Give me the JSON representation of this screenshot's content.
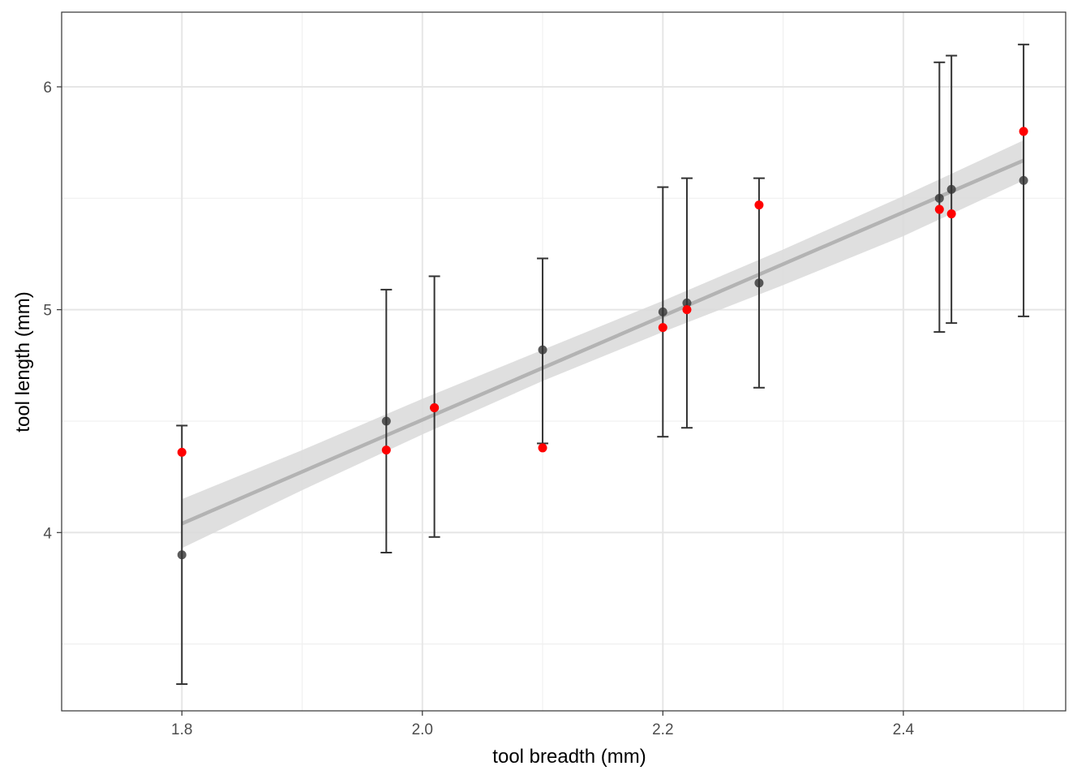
{
  "chart_data": {
    "type": "scatter",
    "title": "",
    "xlabel": "tool breadth (mm)",
    "ylabel": "tool length (mm)",
    "xlim": [
      1.7,
      2.535
    ],
    "ylim": [
      3.2,
      6.335
    ],
    "x_ticks": [
      1.8,
      2.0,
      2.2,
      2.4
    ],
    "x_tick_labels": [
      "1.8",
      "2.0",
      "2.2",
      "2.4"
    ],
    "x_minor_ticks": [
      1.9,
      2.1,
      2.3,
      2.5
    ],
    "y_ticks": [
      4,
      5,
      6
    ],
    "y_tick_labels": [
      "4",
      "5",
      "6"
    ],
    "y_minor_ticks": [
      3.5,
      4.5,
      5.5
    ],
    "grid": true,
    "legend": "none",
    "colors": {
      "observed": "#ff0000",
      "predicted": "#333333",
      "error_bar": "#333333",
      "trend_line": "#b3b3b3",
      "confidence_band": "#d9d9d9",
      "grid_major": "#e6e6e6",
      "grid_minor": "#f0f0f0",
      "panel_border": "#333333"
    },
    "series": [
      {
        "kind": "predicted",
        "points": [
          {
            "x": 1.8,
            "y": 3.9,
            "ymin": 3.32,
            "ymax": 4.48
          },
          {
            "x": 1.97,
            "y": 4.5,
            "ymin": 3.91,
            "ymax": 5.09
          },
          {
            "x": 2.01,
            "y": 4.56,
            "ymin": 3.98,
            "ymax": 5.15
          },
          {
            "x": 2.1,
            "y": 4.82,
            "ymin": 4.4,
            "ymax": 5.23
          },
          {
            "x": 2.2,
            "y": 4.99,
            "ymin": 4.43,
            "ymax": 5.55
          },
          {
            "x": 2.22,
            "y": 5.03,
            "ymin": 4.47,
            "ymax": 5.59
          },
          {
            "x": 2.28,
            "y": 5.12,
            "ymin": 4.65,
            "ymax": 5.59
          },
          {
            "x": 2.43,
            "y": 5.5,
            "ymin": 4.9,
            "ymax": 6.11
          },
          {
            "x": 2.44,
            "y": 5.54,
            "ymin": 4.94,
            "ymax": 6.14
          },
          {
            "x": 2.5,
            "y": 5.58,
            "ymin": 4.97,
            "ymax": 6.19
          }
        ]
      },
      {
        "kind": "observed",
        "points": [
          {
            "x": 1.8,
            "y": 4.36
          },
          {
            "x": 1.97,
            "y": 4.37
          },
          {
            "x": 2.01,
            "y": 4.56
          },
          {
            "x": 2.1,
            "y": 4.38
          },
          {
            "x": 2.2,
            "y": 4.92
          },
          {
            "x": 2.22,
            "y": 5.0
          },
          {
            "x": 2.28,
            "y": 5.47
          },
          {
            "x": 2.43,
            "y": 5.45
          },
          {
            "x": 2.44,
            "y": 5.43
          },
          {
            "x": 2.5,
            "y": 5.8
          }
        ]
      }
    ],
    "trend": {
      "x": [
        1.8,
        2.5
      ],
      "y": [
        4.04,
        5.67
      ],
      "band_x": [
        1.8,
        1.9,
        2.0,
        2.1,
        2.2,
        2.3,
        2.4,
        2.5
      ],
      "band_lower": [
        3.93,
        4.19,
        4.44,
        4.68,
        4.9,
        5.11,
        5.33,
        5.58
      ],
      "band_upper": [
        4.15,
        4.37,
        4.6,
        4.82,
        5.04,
        5.27,
        5.51,
        5.76
      ]
    }
  }
}
